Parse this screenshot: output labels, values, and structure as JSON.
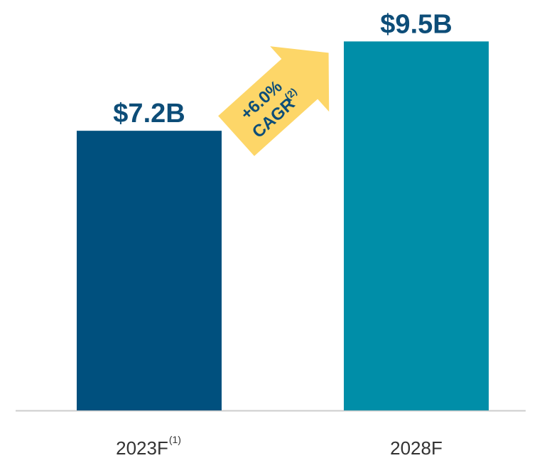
{
  "chart_data": {
    "type": "bar",
    "categories": [
      "2023F",
      "2028F"
    ],
    "category_superscripts": [
      "(1)",
      null
    ],
    "values": [
      7.2,
      9.5
    ],
    "value_labels": [
      "$7.2B",
      "$9.5B"
    ],
    "colors": [
      "#00507e",
      "#008ea8"
    ],
    "ylim": [
      0,
      10
    ],
    "annotation": {
      "text": "+6.0%",
      "line2": "CAGR",
      "superscript": "(2)",
      "color": "#fdd668"
    }
  }
}
